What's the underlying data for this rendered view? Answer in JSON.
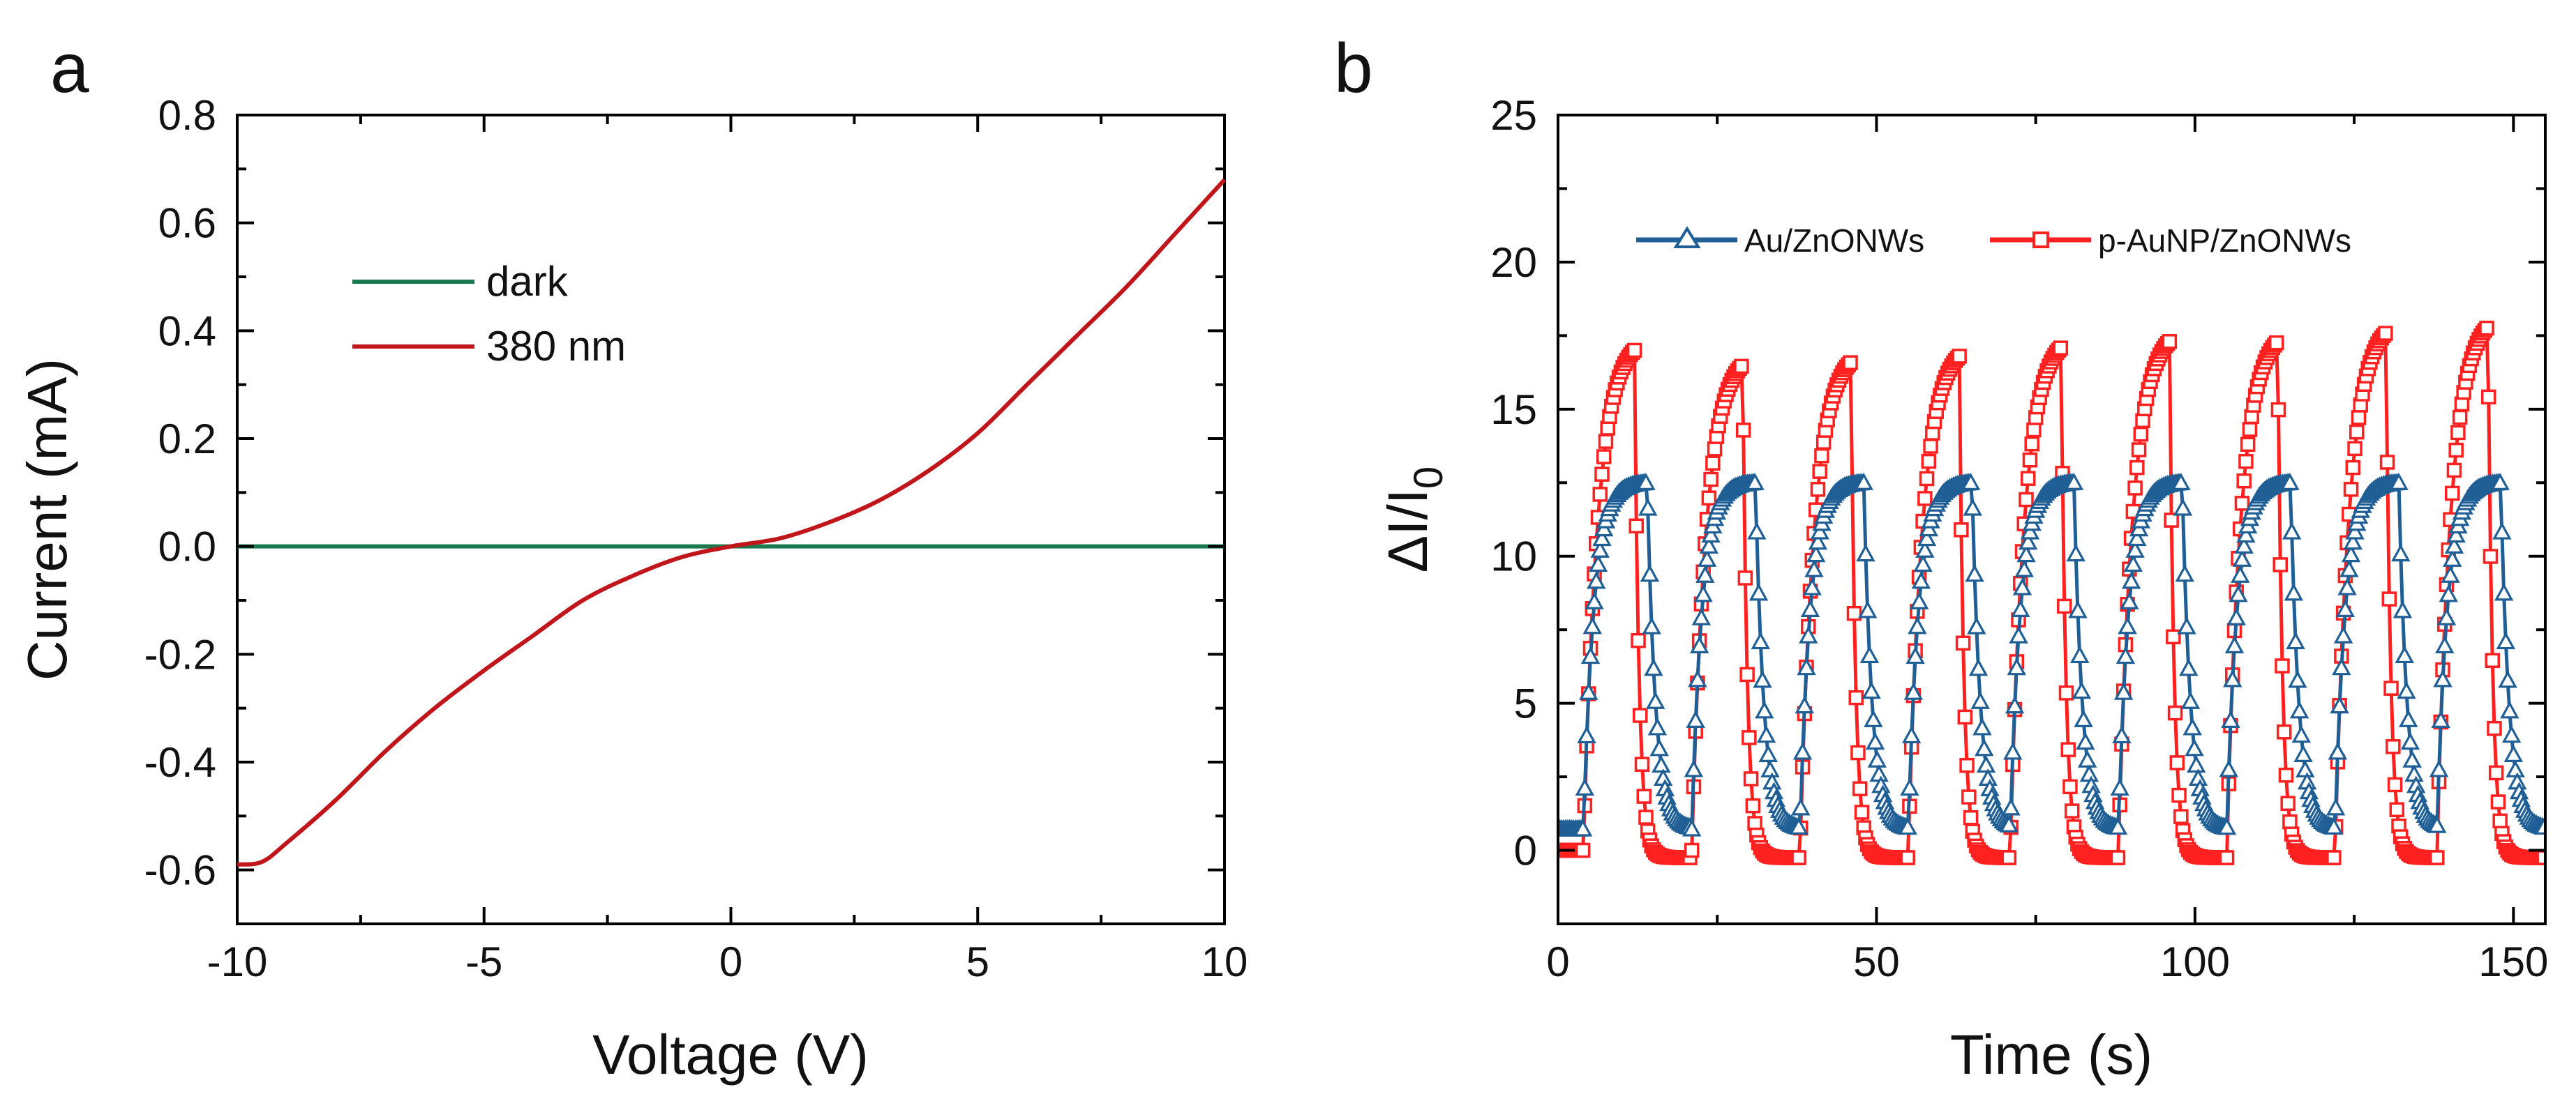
{
  "panels": [
    {
      "label": "a",
      "xlabel": "Voltage (V)",
      "ylabel": "Current (mA)",
      "xticks": [
        "-10",
        "-5",
        "0",
        "5",
        "10"
      ],
      "yticks": [
        "-0.6",
        "-0.4",
        "-0.2",
        "0.0",
        "0.2",
        "0.4",
        "0.6",
        "0.8"
      ],
      "legend": [
        "dark",
        "380 nm"
      ]
    },
    {
      "label": "b",
      "xlabel": "Time (s)",
      "ylabel_main": "ΔI/I",
      "ylabel_sub": "0",
      "xticks": [
        "0",
        "50",
        "100",
        "150"
      ],
      "yticks": [
        "0",
        "5",
        "10",
        "15",
        "20",
        "25"
      ],
      "legend": [
        "Au/ZnONWs",
        "p-AuNP/ZnONWs"
      ]
    }
  ],
  "colors": {
    "dark": "#1a7a4e",
    "light": "#c0161b",
    "blue": "#1f5f95",
    "red": "#ff2020"
  },
  "chart_data": [
    {
      "type": "line",
      "title": "",
      "xlabel": "Voltage (V)",
      "ylabel": "Current (mA)",
      "xlim": [
        -10,
        10
      ],
      "ylim": [
        -0.7,
        0.8
      ],
      "legend_position": "upper-left",
      "series": [
        {
          "name": "dark",
          "x": [
            -10,
            10
          ],
          "values": [
            0,
            0
          ]
        },
        {
          "name": "380 nm",
          "x": [
            -10,
            -9.5,
            -9,
            -8,
            -7,
            -6,
            -5,
            -4,
            -3,
            -2,
            -1,
            0,
            1,
            2,
            3,
            4,
            5,
            6,
            7,
            8,
            9,
            10
          ],
          "values": [
            -0.59,
            -0.585,
            -0.55,
            -0.47,
            -0.38,
            -0.3,
            -0.23,
            -0.165,
            -0.1,
            -0.055,
            -0.02,
            0,
            0.015,
            0.045,
            0.085,
            0.14,
            0.21,
            0.3,
            0.39,
            0.48,
            0.58,
            0.68
          ]
        }
      ]
    },
    {
      "type": "line",
      "title": "",
      "xlabel": "Time (s)",
      "ylabel": "ΔI/I0",
      "xlim": [
        0,
        155
      ],
      "ylim": [
        -2.5,
        25
      ],
      "legend_position": "top",
      "cycle_start_times": [
        4,
        21,
        38,
        55,
        71,
        88,
        105,
        122,
        138
      ],
      "series": [
        {
          "name": "Au/ZnONWs",
          "marker": "triangle",
          "on_duration_s": 10,
          "peak": 12.5,
          "baseline": 0.7
        },
        {
          "name": "p-AuNP/ZnONWs",
          "marker": "square",
          "on_duration_s": 8,
          "peaks": [
            17,
            16.5,
            16.6,
            16.8,
            17.1,
            17.3,
            17.3,
            17.6,
            17.8
          ],
          "baseline": 0
        }
      ]
    }
  ]
}
